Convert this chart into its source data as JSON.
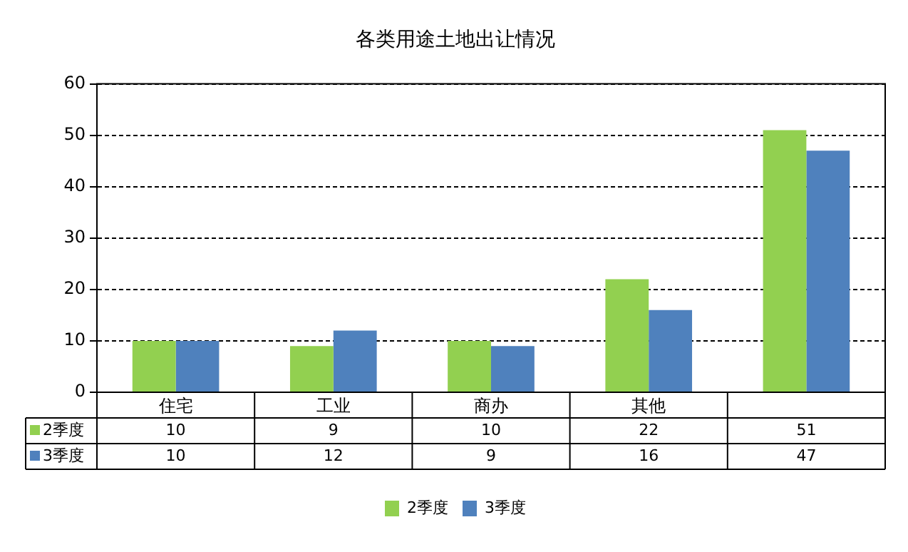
{
  "chart_data": {
    "type": "bar",
    "title": "各类用途土地出让情况",
    "categories": [
      "住宅",
      "工业",
      "商办",
      "其他",
      null
    ],
    "series": [
      {
        "name": "2季度",
        "color": "#92d050",
        "values": [
          10,
          9,
          10,
          22,
          51
        ]
      },
      {
        "name": "3季度",
        "color": "#4f81bd",
        "values": [
          10,
          12,
          9,
          16,
          47
        ]
      }
    ],
    "ylim": [
      0,
      60
    ],
    "yticks": [
      0,
      10,
      20,
      30,
      40,
      50,
      60
    ],
    "grid": "y",
    "legend": "bottom",
    "data_labels": true
  }
}
